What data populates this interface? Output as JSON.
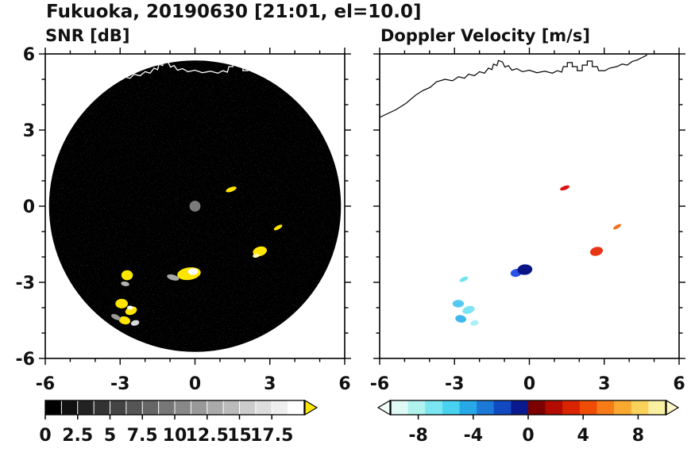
{
  "chart_data": {
    "type": "heatmap",
    "title": "Fukuoka, 20190630 [21:01, el=10.0]",
    "panels": {
      "snr": {
        "label": "SNR [dB]",
        "xlim": [
          -6,
          6
        ],
        "ylim": [
          -6,
          6
        ],
        "xticks": [
          -6,
          -3,
          0,
          3,
          6
        ],
        "xtick_labels": [
          "-6",
          "-3",
          "0",
          "3",
          "6"
        ],
        "yticks": [
          -6,
          -3,
          0,
          3,
          6
        ],
        "ytick_labels": [
          "-6",
          "-3",
          "0",
          "3",
          "6"
        ],
        "scan_disk": {
          "cx": 0,
          "cy": 0,
          "r": 5.85,
          "color": "#000000"
        },
        "center_dot": {
          "x": 0,
          "y": 0,
          "r": 0.22,
          "color": "#7a7a7a"
        },
        "echoes": [
          {
            "x": 1.45,
            "y": 0.66,
            "w": 0.45,
            "h": 0.18,
            "rot": -20,
            "color": "#ffe600"
          },
          {
            "x": 3.33,
            "y": -0.84,
            "w": 0.38,
            "h": 0.15,
            "rot": -30,
            "color": "#ffe600"
          },
          {
            "x": 2.6,
            "y": -1.78,
            "w": 0.57,
            "h": 0.38,
            "rot": -15,
            "color": "#ffe600"
          },
          {
            "x": 2.45,
            "y": -1.95,
            "w": 0.28,
            "h": 0.16,
            "rot": -10,
            "color": "#fff6a8"
          },
          {
            "x": -0.24,
            "y": -2.66,
            "w": 0.95,
            "h": 0.5,
            "rot": -8,
            "color": "#ffe600"
          },
          {
            "x": -0.08,
            "y": -2.58,
            "w": 0.4,
            "h": 0.27,
            "rot": 0,
            "color": "#ffffff"
          },
          {
            "x": -0.88,
            "y": -2.81,
            "w": 0.5,
            "h": 0.22,
            "rot": 15,
            "color": "#a8a8a8"
          },
          {
            "x": -2.72,
            "y": -2.72,
            "w": 0.46,
            "h": 0.4,
            "rot": 0,
            "color": "#ffe600"
          },
          {
            "x": -2.8,
            "y": -3.06,
            "w": 0.34,
            "h": 0.18,
            "rot": 10,
            "color": "#b4b4b4"
          },
          {
            "x": -2.94,
            "y": -3.84,
            "w": 0.5,
            "h": 0.38,
            "rot": 0,
            "color": "#ffe600"
          },
          {
            "x": -2.56,
            "y": -4.12,
            "w": 0.48,
            "h": 0.32,
            "rot": -20,
            "color": "#ffe600"
          },
          {
            "x": -2.6,
            "y": -4.0,
            "w": 0.24,
            "h": 0.16,
            "rot": 0,
            "color": "#ffffff"
          },
          {
            "x": -2.82,
            "y": -4.5,
            "w": 0.46,
            "h": 0.32,
            "rot": 12,
            "color": "#ffe600"
          },
          {
            "x": -2.4,
            "y": -4.6,
            "w": 0.34,
            "h": 0.22,
            "rot": -15,
            "color": "#d8d8d8"
          },
          {
            "x": -3.17,
            "y": -4.37,
            "w": 0.4,
            "h": 0.2,
            "rot": 25,
            "color": "#9a9a9a"
          }
        ]
      },
      "doppler": {
        "label": "Doppler Velocity [m/s]",
        "xlim": [
          -6,
          6
        ],
        "ylim": [
          -6,
          6
        ],
        "xticks": [
          -6,
          -3,
          0,
          3,
          6
        ],
        "xtick_labels": [
          "-6",
          "-3",
          "0",
          "3",
          "6"
        ],
        "yticks": [
          -6,
          -3,
          0,
          3,
          6
        ],
        "ytick_labels": [
          "-6",
          "-3",
          "0",
          "3",
          "6"
        ],
        "echoes": [
          {
            "x": 1.42,
            "y": 0.72,
            "w": 0.4,
            "h": 0.16,
            "rot": -20,
            "color": "#dd1111"
          },
          {
            "x": 3.52,
            "y": -0.81,
            "w": 0.36,
            "h": 0.14,
            "rot": -30,
            "color": "#f07020"
          },
          {
            "x": 2.69,
            "y": -1.78,
            "w": 0.52,
            "h": 0.35,
            "rot": -15,
            "color": "#e83515"
          },
          {
            "x": -0.53,
            "y": -2.63,
            "w": 0.45,
            "h": 0.32,
            "rot": -10,
            "color": "#2a52e8"
          },
          {
            "x": -0.18,
            "y": -2.5,
            "w": 0.6,
            "h": 0.42,
            "rot": -5,
            "color": "#0b1486"
          },
          {
            "x": -2.63,
            "y": -2.88,
            "w": 0.38,
            "h": 0.16,
            "rot": -25,
            "color": "#6fe2f2"
          },
          {
            "x": -2.85,
            "y": -3.84,
            "w": 0.46,
            "h": 0.3,
            "rot": 0,
            "color": "#57c9f0"
          },
          {
            "x": -2.44,
            "y": -4.09,
            "w": 0.5,
            "h": 0.3,
            "rot": -18,
            "color": "#7de6f4"
          },
          {
            "x": -2.75,
            "y": -4.44,
            "w": 0.44,
            "h": 0.3,
            "rot": 10,
            "color": "#3fb6ec"
          },
          {
            "x": -2.2,
            "y": -4.6,
            "w": 0.34,
            "h": 0.22,
            "rot": -15,
            "color": "#b0eef8"
          }
        ]
      }
    },
    "coastline": [
      [
        -6.0,
        3.5
      ],
      [
        -5.35,
        3.8
      ],
      [
        -4.95,
        4.05
      ],
      [
        -4.55,
        4.38
      ],
      [
        -4.28,
        4.55
      ],
      [
        -3.98,
        4.68
      ],
      [
        -3.72,
        4.9
      ],
      [
        -3.38,
        5.0
      ],
      [
        -3.08,
        4.94
      ],
      [
        -2.84,
        5.1
      ],
      [
        -2.6,
        5.04
      ],
      [
        -2.44,
        5.2
      ],
      [
        -2.2,
        5.14
      ],
      [
        -2.0,
        5.3
      ],
      [
        -1.8,
        5.24
      ],
      [
        -1.64,
        5.44
      ],
      [
        -1.5,
        5.38
      ],
      [
        -1.44,
        5.6
      ],
      [
        -1.3,
        5.54
      ],
      [
        -1.24,
        5.74
      ],
      [
        -1.08,
        5.68
      ],
      [
        -0.98,
        5.48
      ],
      [
        -0.84,
        5.54
      ],
      [
        -0.7,
        5.36
      ],
      [
        -0.5,
        5.42
      ],
      [
        -0.28,
        5.3
      ],
      [
        0.0,
        5.36
      ],
      [
        0.3,
        5.26
      ],
      [
        0.62,
        5.32
      ],
      [
        0.92,
        5.24
      ],
      [
        1.12,
        5.34
      ],
      [
        1.3,
        5.28
      ],
      [
        1.36,
        5.5
      ],
      [
        1.52,
        5.5
      ],
      [
        1.52,
        5.66
      ],
      [
        1.72,
        5.66
      ],
      [
        1.72,
        5.5
      ],
      [
        1.92,
        5.5
      ],
      [
        1.92,
        5.34
      ],
      [
        2.12,
        5.34
      ],
      [
        2.12,
        5.56
      ],
      [
        2.32,
        5.56
      ],
      [
        2.32,
        5.72
      ],
      [
        2.52,
        5.72
      ],
      [
        2.52,
        5.5
      ],
      [
        2.72,
        5.5
      ],
      [
        2.78,
        5.34
      ],
      [
        3.02,
        5.34
      ],
      [
        3.22,
        5.44
      ],
      [
        3.5,
        5.5
      ],
      [
        3.72,
        5.6
      ],
      [
        3.92,
        5.56
      ],
      [
        4.12,
        5.7
      ],
      [
        4.32,
        5.76
      ],
      [
        4.52,
        5.86
      ],
      [
        4.72,
        5.96
      ]
    ],
    "colorbars": {
      "snr": {
        "range": [
          0,
          20
        ],
        "ticks": [
          0,
          2.5,
          5,
          7.5,
          10,
          12.5,
          15,
          17.5
        ],
        "tick_labels": [
          "0",
          "2.5",
          "5",
          "7.5",
          "10",
          "12.5",
          "15",
          "17.5"
        ],
        "colors": [
          "#000000",
          "#111111",
          "#222222",
          "#333333",
          "#444444",
          "#555555",
          "#666666",
          "#777777",
          "#888888",
          "#999999",
          "#aaaaaa",
          "#bbbbbb",
          "#cccccc",
          "#dddddd",
          "#eeeeee",
          "#ffffff"
        ],
        "over_arrow_color": "#ffe600",
        "separators": true
      },
      "doppler": {
        "range": [
          -10,
          10
        ],
        "ticks": [
          -8,
          -4,
          0,
          4,
          8
        ],
        "tick_labels": [
          "-8",
          "-4",
          "0",
          "4",
          "8"
        ],
        "colors": [
          "#dff9f5",
          "#aff2ee",
          "#79e6f1",
          "#49d2f0",
          "#27a9e8",
          "#1b79d8",
          "#1149c1",
          "#0a1a8e",
          "#7c0000",
          "#b20c00",
          "#da2400",
          "#ef4c05",
          "#f77c18",
          "#f9a930",
          "#f9d25b",
          "#f9f0a2"
        ],
        "under_arrow_color": "#eefcfa",
        "over_arrow_color": "#fdf7c6",
        "separators": false
      }
    }
  }
}
